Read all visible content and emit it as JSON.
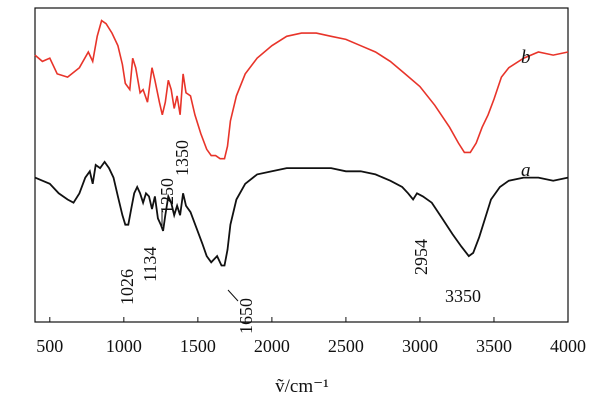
{
  "chart_data": {
    "type": "line",
    "title": "",
    "xlabel": "ṽ/cm⁻¹",
    "ylabel": "",
    "xlim": [
      400,
      4000
    ],
    "ylim": [
      0,
      1
    ],
    "xticks": [
      500,
      1000,
      1500,
      2000,
      2500,
      3000,
      3500,
      4000
    ],
    "xtick_labels": [
      "500",
      "1000",
      "1500",
      "2000",
      "2500",
      "3000",
      "3500",
      "4000"
    ],
    "series": [
      {
        "name": "b",
        "label": "b",
        "color": "#e8342a",
        "points": [
          [
            400,
            0.85
          ],
          [
            450,
            0.83
          ],
          [
            500,
            0.84
          ],
          [
            550,
            0.79
          ],
          [
            620,
            0.78
          ],
          [
            700,
            0.81
          ],
          [
            760,
            0.86
          ],
          [
            790,
            0.83
          ],
          [
            820,
            0.91
          ],
          [
            850,
            0.96
          ],
          [
            880,
            0.95
          ],
          [
            920,
            0.92
          ],
          [
            960,
            0.88
          ],
          [
            990,
            0.82
          ],
          [
            1010,
            0.76
          ],
          [
            1040,
            0.74
          ],
          [
            1060,
            0.84
          ],
          [
            1080,
            0.81
          ],
          [
            1110,
            0.73
          ],
          [
            1130,
            0.74
          ],
          [
            1160,
            0.7
          ],
          [
            1190,
            0.81
          ],
          [
            1210,
            0.77
          ],
          [
            1240,
            0.7
          ],
          [
            1260,
            0.66
          ],
          [
            1280,
            0.7
          ],
          [
            1300,
            0.77
          ],
          [
            1320,
            0.74
          ],
          [
            1340,
            0.68
          ],
          [
            1360,
            0.72
          ],
          [
            1380,
            0.66
          ],
          [
            1400,
            0.79
          ],
          [
            1420,
            0.73
          ],
          [
            1450,
            0.72
          ],
          [
            1480,
            0.66
          ],
          [
            1520,
            0.6
          ],
          [
            1560,
            0.55
          ],
          [
            1590,
            0.53
          ],
          [
            1620,
            0.53
          ],
          [
            1650,
            0.52
          ],
          [
            1680,
            0.52
          ],
          [
            1700,
            0.56
          ],
          [
            1720,
            0.64
          ],
          [
            1760,
            0.72
          ],
          [
            1820,
            0.79
          ],
          [
            1900,
            0.84
          ],
          [
            2000,
            0.88
          ],
          [
            2100,
            0.91
          ],
          [
            2200,
            0.92
          ],
          [
            2300,
            0.92
          ],
          [
            2400,
            0.91
          ],
          [
            2500,
            0.9
          ],
          [
            2600,
            0.88
          ],
          [
            2700,
            0.86
          ],
          [
            2800,
            0.83
          ],
          [
            2900,
            0.79
          ],
          [
            3000,
            0.75
          ],
          [
            3100,
            0.69
          ],
          [
            3200,
            0.62
          ],
          [
            3260,
            0.57
          ],
          [
            3300,
            0.54
          ],
          [
            3340,
            0.54
          ],
          [
            3380,
            0.57
          ],
          [
            3420,
            0.62
          ],
          [
            3460,
            0.66
          ],
          [
            3500,
            0.71
          ],
          [
            3550,
            0.78
          ],
          [
            3600,
            0.81
          ],
          [
            3700,
            0.84
          ],
          [
            3800,
            0.86
          ],
          [
            3900,
            0.85
          ],
          [
            4000,
            0.86
          ]
        ]
      },
      {
        "name": "a",
        "label": "a",
        "color": "#111111",
        "points": [
          [
            400,
            0.46
          ],
          [
            450,
            0.45
          ],
          [
            500,
            0.44
          ],
          [
            560,
            0.41
          ],
          [
            620,
            0.39
          ],
          [
            660,
            0.38
          ],
          [
            700,
            0.41
          ],
          [
            740,
            0.46
          ],
          [
            770,
            0.48
          ],
          [
            790,
            0.44
          ],
          [
            810,
            0.5
          ],
          [
            840,
            0.49
          ],
          [
            870,
            0.51
          ],
          [
            900,
            0.49
          ],
          [
            930,
            0.46
          ],
          [
            960,
            0.4
          ],
          [
            990,
            0.34
          ],
          [
            1010,
            0.31
          ],
          [
            1030,
            0.31
          ],
          [
            1050,
            0.36
          ],
          [
            1070,
            0.41
          ],
          [
            1090,
            0.43
          ],
          [
            1110,
            0.41
          ],
          [
            1130,
            0.38
          ],
          [
            1150,
            0.41
          ],
          [
            1170,
            0.4
          ],
          [
            1190,
            0.36
          ],
          [
            1210,
            0.4
          ],
          [
            1230,
            0.33
          ],
          [
            1250,
            0.31
          ],
          [
            1265,
            0.29
          ],
          [
            1280,
            0.34
          ],
          [
            1300,
            0.4
          ],
          [
            1320,
            0.38
          ],
          [
            1340,
            0.34
          ],
          [
            1360,
            0.37
          ],
          [
            1380,
            0.34
          ],
          [
            1400,
            0.41
          ],
          [
            1420,
            0.37
          ],
          [
            1450,
            0.35
          ],
          [
            1490,
            0.3
          ],
          [
            1530,
            0.25
          ],
          [
            1560,
            0.21
          ],
          [
            1590,
            0.19
          ],
          [
            1610,
            0.2
          ],
          [
            1630,
            0.21
          ],
          [
            1660,
            0.18
          ],
          [
            1680,
            0.18
          ],
          [
            1700,
            0.23
          ],
          [
            1720,
            0.31
          ],
          [
            1760,
            0.39
          ],
          [
            1820,
            0.44
          ],
          [
            1900,
            0.47
          ],
          [
            2000,
            0.48
          ],
          [
            2100,
            0.49
          ],
          [
            2200,
            0.49
          ],
          [
            2300,
            0.49
          ],
          [
            2400,
            0.49
          ],
          [
            2500,
            0.48
          ],
          [
            2600,
            0.48
          ],
          [
            2700,
            0.47
          ],
          [
            2800,
            0.45
          ],
          [
            2880,
            0.43
          ],
          [
            2920,
            0.41
          ],
          [
            2954,
            0.39
          ],
          [
            2980,
            0.41
          ],
          [
            3020,
            0.4
          ],
          [
            3080,
            0.38
          ],
          [
            3150,
            0.33
          ],
          [
            3220,
            0.28
          ],
          [
            3280,
            0.24
          ],
          [
            3330,
            0.21
          ],
          [
            3360,
            0.22
          ],
          [
            3400,
            0.27
          ],
          [
            3440,
            0.33
          ],
          [
            3480,
            0.39
          ],
          [
            3540,
            0.43
          ],
          [
            3600,
            0.45
          ],
          [
            3700,
            0.46
          ],
          [
            3800,
            0.46
          ],
          [
            3900,
            0.45
          ],
          [
            4000,
            0.46
          ]
        ]
      }
    ],
    "annotations": [
      {
        "text": "1350",
        "x": 1350,
        "series": "b"
      },
      {
        "text": "1026",
        "x": 1026,
        "series": "a"
      },
      {
        "text": "1134",
        "x": 1134,
        "series": "a"
      },
      {
        "text": "1250",
        "x": 1250,
        "series": "a"
      },
      {
        "text": "1650",
        "x": 1650,
        "series": "a"
      },
      {
        "text": "2954",
        "x": 2954,
        "series": "a"
      },
      {
        "text": "3350",
        "x": 3350,
        "series": "a"
      }
    ]
  }
}
